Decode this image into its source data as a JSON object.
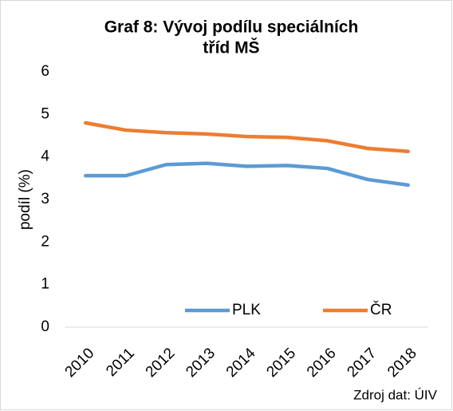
{
  "chart_data": {
    "type": "line",
    "title": [
      "Graf 8: Vývoj podílu speciálních",
      "tříd MŠ"
    ],
    "y_label": "podíl (%)",
    "categories": [
      "2010",
      "2011",
      "2012",
      "2013",
      "2014",
      "2015",
      "2016",
      "2017",
      "2018"
    ],
    "series": [
      {
        "name": "PLK",
        "color": "#5b9bd5",
        "values": [
          3.56,
          3.56,
          3.82,
          3.85,
          3.78,
          3.8,
          3.73,
          3.47,
          3.34
        ]
      },
      {
        "name": "ČR",
        "color": "#ed7d31",
        "values": [
          4.8,
          4.63,
          4.57,
          4.54,
          4.48,
          4.46,
          4.38,
          4.2,
          4.13
        ]
      }
    ],
    "ylim": [
      0,
      6
    ],
    "yticks": [
      0,
      1,
      2,
      3,
      4,
      5,
      6
    ],
    "legend": "bottom",
    "source": "Zdroj dat: ÚIV"
  }
}
